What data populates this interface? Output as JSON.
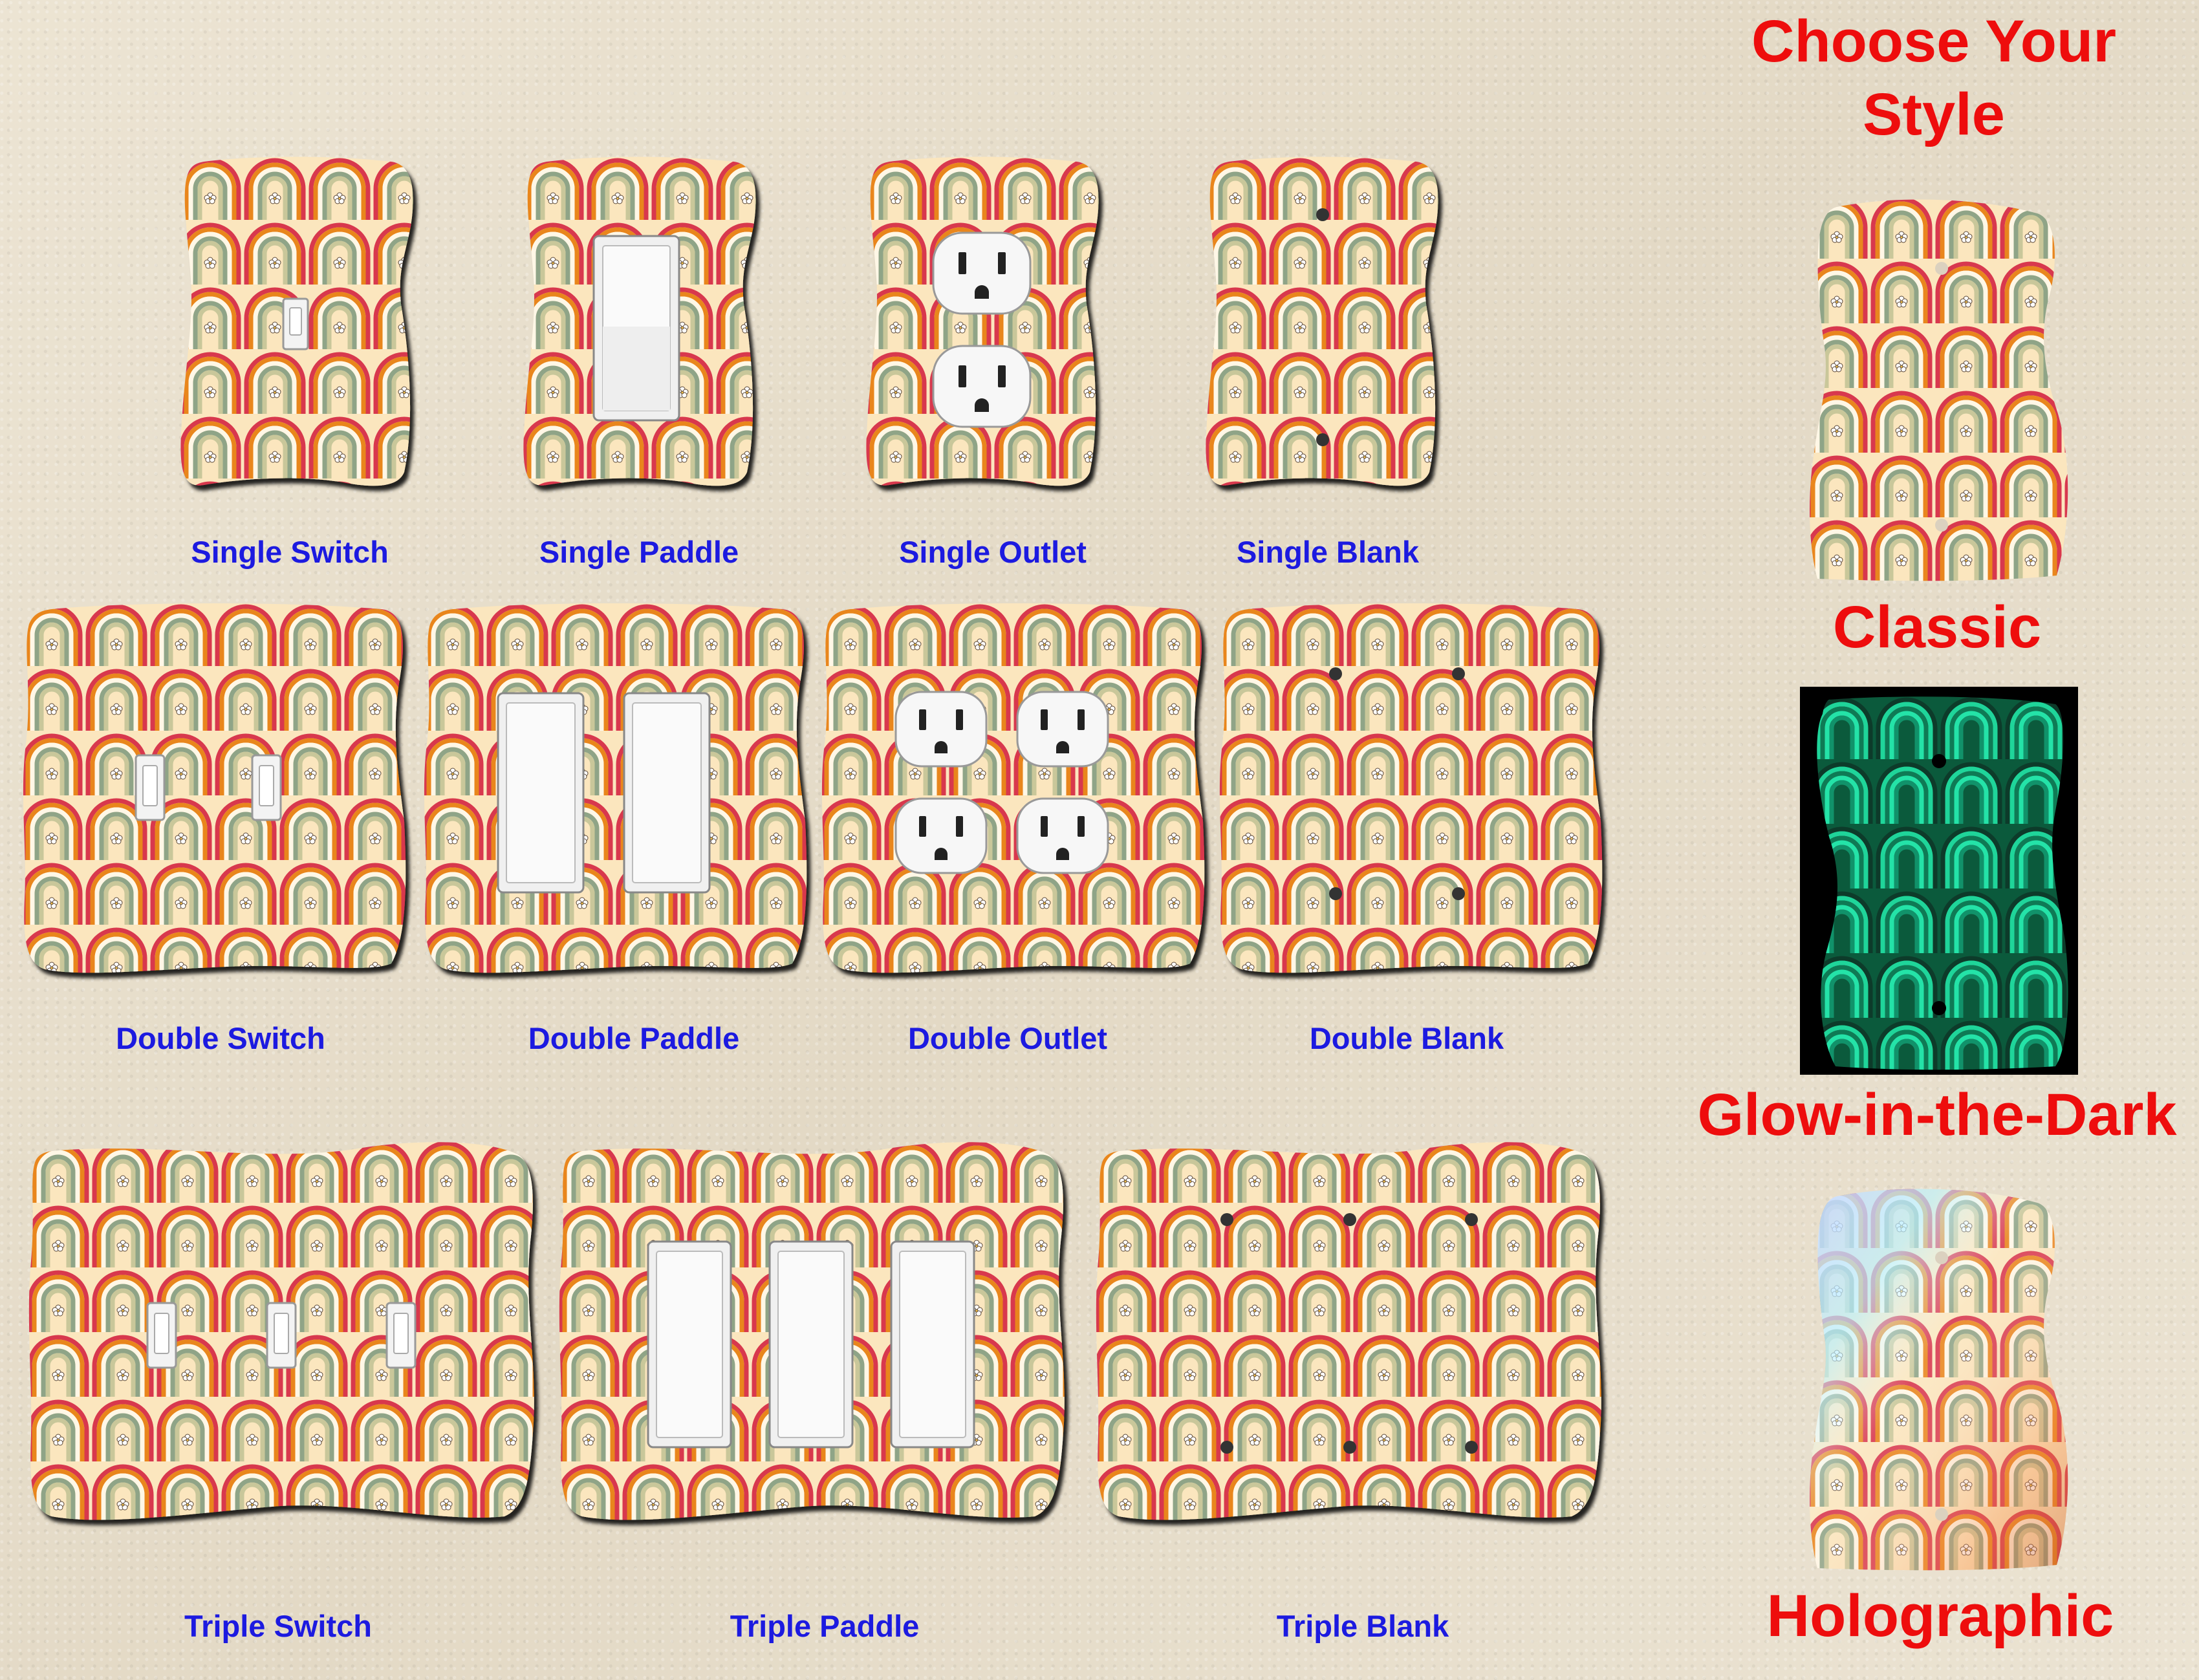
{
  "plates": {
    "single_switch": "Single Switch",
    "single_paddle": "Single Paddle",
    "single_outlet": "Single Outlet",
    "single_blank": "Single Blank",
    "double_switch": "Double Switch",
    "double_paddle": "Double Paddle",
    "double_outlet": "Double Outlet",
    "double_blank": "Double Blank",
    "triple_switch": "Triple Switch",
    "triple_paddle": "Triple Paddle",
    "triple_blank": "Triple Blank"
  },
  "styles": {
    "heading_line1": "Choose Your",
    "heading_line2": "Style",
    "classic": "Classic",
    "glow": "Glow-in-the-Dark",
    "holographic": "Holographic"
  },
  "colors": {
    "label_blue": "#1c1ae0",
    "style_red": "#ee0d0d",
    "rainbow_red": "#d8384e",
    "rainbow_orange": "#e9861e",
    "rainbow_cream": "#fbe6be",
    "rainbow_sage": "#8fa487",
    "glow_green": "#1fd59a"
  }
}
